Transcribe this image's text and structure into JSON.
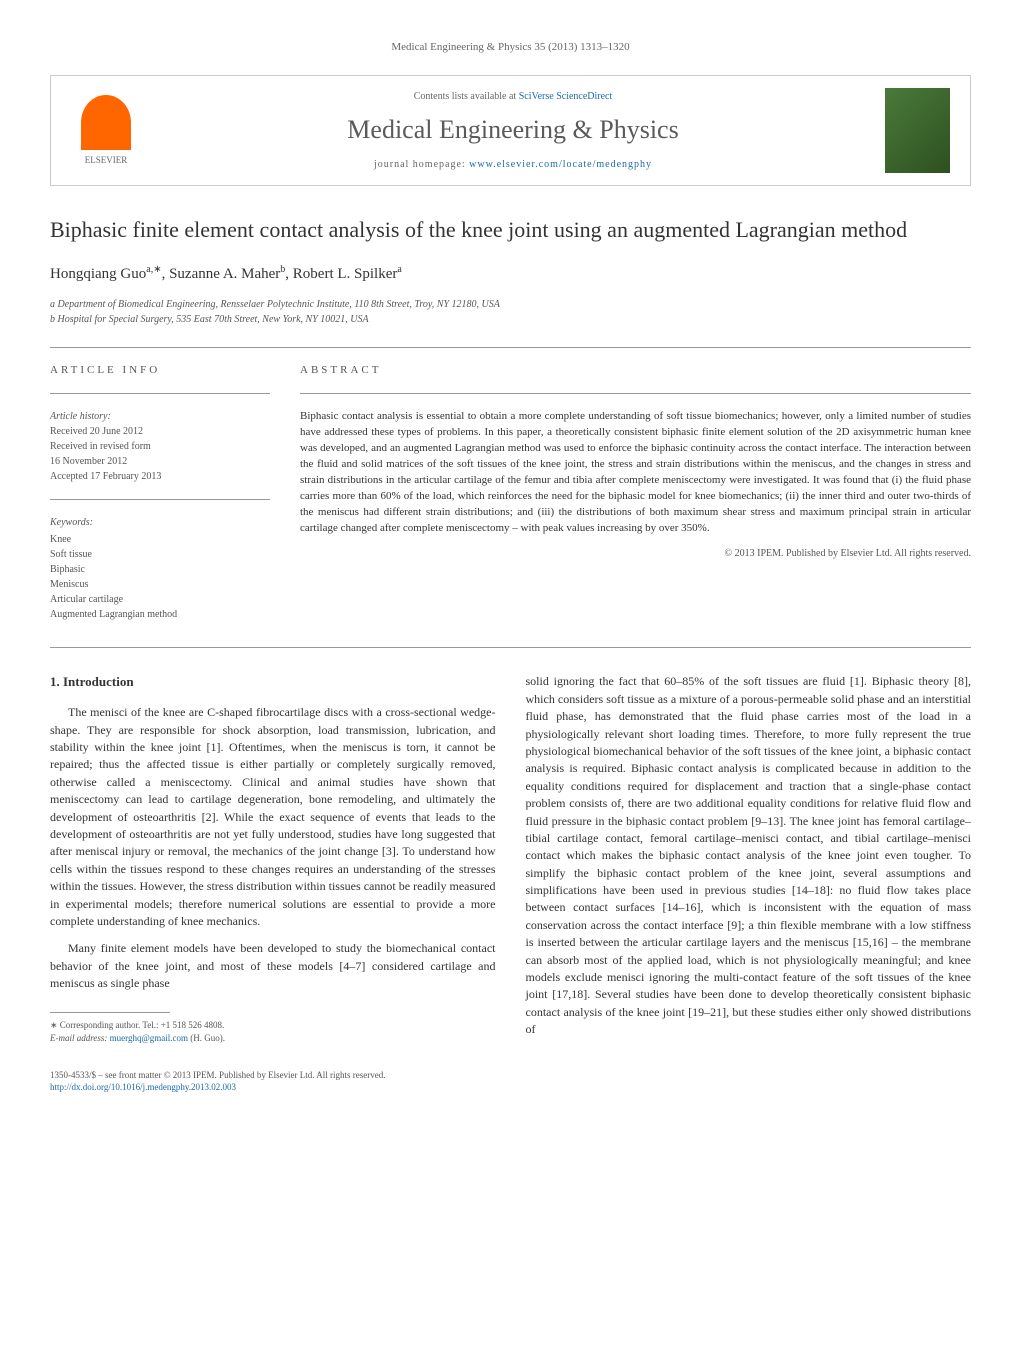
{
  "header": {
    "journal_ref": "Medical Engineering & Physics 35 (2013) 1313–1320",
    "contents_text": "Contents lists available at",
    "contents_link": "SciVerse ScienceDirect",
    "journal_title": "Medical Engineering & Physics",
    "homepage_label": "journal homepage:",
    "homepage_url": "www.elsevier.com/locate/medengphy",
    "elsevier_label": "ELSEVIER"
  },
  "article": {
    "title": "Biphasic finite element contact analysis of the knee joint using an augmented Lagrangian method",
    "authors_html": "Hongqiang Guo",
    "author1_sup": "a,∗",
    "author2": ", Suzanne A. Maher",
    "author2_sup": "b",
    "author3": ", Robert L. Spilker",
    "author3_sup": "a",
    "affiliations": [
      "a Department of Biomedical Engineering, Rensselaer Polytechnic Institute, 110 8th Street, Troy, NY 12180, USA",
      "b Hospital for Special Surgery, 535 East 70th Street, New York, NY 10021, USA"
    ]
  },
  "info": {
    "heading": "ARTICLE INFO",
    "history_label": "Article history:",
    "received": "Received 20 June 2012",
    "revised": "Received in revised form",
    "revised_date": "16 November 2012",
    "accepted": "Accepted 17 February 2013",
    "keywords_label": "Keywords:",
    "keywords": [
      "Knee",
      "Soft tissue",
      "Biphasic",
      "Meniscus",
      "Articular cartilage",
      "Augmented Lagrangian method"
    ]
  },
  "abstract": {
    "heading": "ABSTRACT",
    "text": "Biphasic contact analysis is essential to obtain a more complete understanding of soft tissue biomechanics; however, only a limited number of studies have addressed these types of problems. In this paper, a theoretically consistent biphasic finite element solution of the 2D axisymmetric human knee was developed, and an augmented Lagrangian method was used to enforce the biphasic continuity across the contact interface. The interaction between the fluid and solid matrices of the soft tissues of the knee joint, the stress and strain distributions within the meniscus, and the changes in stress and strain distributions in the articular cartilage of the femur and tibia after complete meniscectomy were investigated. It was found that (i) the fluid phase carries more than 60% of the load, which reinforces the need for the biphasic model for knee biomechanics; (ii) the inner third and outer two-thirds of the meniscus had different strain distributions; and (iii) the distributions of both maximum shear stress and maximum principal strain in articular cartilage changed after complete meniscectomy – with peak values increasing by over 350%.",
    "copyright": "© 2013 IPEM. Published by Elsevier Ltd. All rights reserved."
  },
  "body": {
    "section_heading": "1. Introduction",
    "col1_p1": "The menisci of the knee are C-shaped fibrocartilage discs with a cross-sectional wedge-shape. They are responsible for shock absorption, load transmission, lubrication, and stability within the knee joint [1]. Oftentimes, when the meniscus is torn, it cannot be repaired; thus the affected tissue is either partially or completely surgically removed, otherwise called a meniscectomy. Clinical and animal studies have shown that meniscectomy can lead to cartilage degeneration, bone remodeling, and ultimately the development of osteoarthritis [2]. While the exact sequence of events that leads to the development of osteoarthritis are not yet fully understood, studies have long suggested that after meniscal injury or removal, the mechanics of the joint change [3]. To understand how cells within the tissues respond to these changes requires an understanding of the stresses within the tissues. However, the stress distribution within tissues cannot be readily measured in experimental models; therefore numerical solutions are essential to provide a more complete understanding of knee mechanics.",
    "col1_p2": "Many finite element models have been developed to study the biomechanical contact behavior of the knee joint, and most of these models [4–7] considered cartilage and meniscus as single phase",
    "col2_p1": "solid ignoring the fact that 60–85% of the soft tissues are fluid [1]. Biphasic theory [8], which considers soft tissue as a mixture of a porous-permeable solid phase and an interstitial fluid phase, has demonstrated that the fluid phase carries most of the load in a physiologically relevant short loading times. Therefore, to more fully represent the true physiological biomechanical behavior of the soft tissues of the knee joint, a biphasic contact analysis is required. Biphasic contact analysis is complicated because in addition to the equality conditions required for displacement and traction that a single-phase contact problem consists of, there are two additional equality conditions for relative fluid flow and fluid pressure in the biphasic contact problem [9–13]. The knee joint has femoral cartilage–tibial cartilage contact, femoral cartilage–menisci contact, and tibial cartilage–menisci contact which makes the biphasic contact analysis of the knee joint even tougher. To simplify the biphasic contact problem of the knee joint, several assumptions and simplifications have been used in previous studies [14–18]: no fluid flow takes place between contact surfaces [14–16], which is inconsistent with the equation of mass conservation across the contact interface [9]; a thin flexible membrane with a low stiffness is inserted between the articular cartilage layers and the meniscus [15,16] – the membrane can absorb most of the applied load, which is not physiologically meaningful; and knee models exclude menisci ignoring the multi-contact feature of the soft tissues of the knee joint [17,18]. Several studies have been done to develop theoretically consistent biphasic contact analysis of the knee joint [19–21], but these studies either only showed distributions of"
  },
  "footnotes": {
    "corresponding": "∗ Corresponding author. Tel.: +1 518 526 4808.",
    "email_label": "E-mail address:",
    "email": "muerghq@gmail.com",
    "email_name": "(H. Guo)."
  },
  "bottom": {
    "issn": "1350-4533/$ – see front matter © 2013 IPEM. Published by Elsevier Ltd. All rights reserved.",
    "doi": "http://dx.doi.org/10.1016/j.medengphy.2013.02.003"
  },
  "colors": {
    "link": "#1a6ba8",
    "text": "#333333",
    "muted": "#666666",
    "elsevier_orange": "#ff6600",
    "cover_green": "#4a7a3a"
  }
}
